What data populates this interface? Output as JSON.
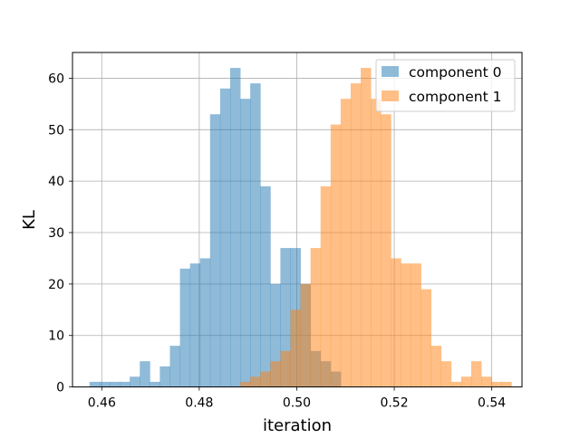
{
  "chart_data": {
    "type": "histogram",
    "xlabel": "iteration",
    "ylabel": "KL",
    "xlim": [
      0.454,
      0.5462
    ],
    "ylim": [
      0,
      65
    ],
    "x_ticks": [
      {
        "value": 0.46,
        "label": "0.46"
      },
      {
        "value": 0.48,
        "label": "0.48"
      },
      {
        "value": 0.5,
        "label": "0.50"
      },
      {
        "value": 0.52,
        "label": "0.52"
      },
      {
        "value": 0.54,
        "label": "0.54"
      }
    ],
    "y_ticks": [
      {
        "value": 0,
        "label": "0"
      },
      {
        "value": 10,
        "label": "10"
      },
      {
        "value": 20,
        "label": "20"
      },
      {
        "value": 30,
        "label": "30"
      },
      {
        "value": 40,
        "label": "40"
      },
      {
        "value": 50,
        "label": "50"
      },
      {
        "value": 60,
        "label": "60"
      }
    ],
    "grid": true,
    "legend_position": "upper right",
    "series": [
      {
        "name": "component 0",
        "color": "#1f77b4",
        "opacity": 0.5,
        "bin_start": 0.4575,
        "bin_width": 0.00206,
        "counts": [
          1,
          1,
          1,
          1,
          2,
          5,
          1,
          4,
          8,
          23,
          24,
          25,
          53,
          58,
          62,
          56,
          59,
          39,
          20,
          27,
          27,
          20,
          7,
          5,
          3,
          0,
          0,
          0,
          0,
          0,
          0,
          0,
          0,
          0,
          0,
          0,
          0,
          0,
          0,
          0,
          0,
          0
        ]
      },
      {
        "name": "component 1",
        "color": "#ff7f0e",
        "opacity": 0.5,
        "bin_start": 0.4575,
        "bin_width": 0.00206,
        "counts": [
          0,
          0,
          0,
          0,
          0,
          0,
          0,
          0,
          0,
          0,
          0,
          0,
          0,
          0,
          0,
          1,
          2,
          3,
          5,
          7,
          15,
          20,
          27,
          39,
          51,
          56,
          59,
          62,
          56,
          53,
          25,
          24,
          24,
          19,
          8,
          5,
          1,
          2,
          5,
          2,
          1,
          1
        ]
      }
    ]
  }
}
